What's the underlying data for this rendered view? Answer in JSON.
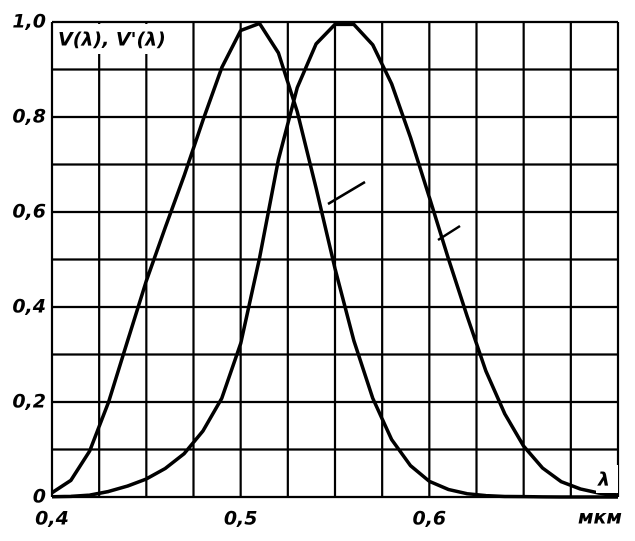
{
  "chart_data": {
    "type": "line",
    "y_label": "V(λ), V'(λ)",
    "x_label": "λ",
    "x_unit": "мкм",
    "x": [
      0.4,
      0.41,
      0.42,
      0.43,
      0.44,
      0.45,
      0.46,
      0.47,
      0.48,
      0.49,
      0.5,
      0.51,
      0.52,
      0.53,
      0.54,
      0.55,
      0.56,
      0.57,
      0.58,
      0.59,
      0.6,
      0.61,
      0.62,
      0.63,
      0.64,
      0.65,
      0.66,
      0.67,
      0.68,
      0.69,
      0.7
    ],
    "series": [
      {
        "color": "#000000",
        "values": [
          0.009,
          0.035,
          0.097,
          0.2,
          0.328,
          0.455,
          0.567,
          0.676,
          0.793,
          0.904,
          0.982,
          0.997,
          0.935,
          0.811,
          0.65,
          0.481,
          0.329,
          0.208,
          0.121,
          0.066,
          0.033,
          0.016,
          0.007,
          0.003,
          0.001,
          0.0007,
          0.0003,
          0.0001,
          0,
          0,
          0
        ]
      },
      {
        "color": "#000000",
        "values": [
          0.0004,
          0.0012,
          0.004,
          0.0116,
          0.023,
          0.038,
          0.06,
          0.091,
          0.139,
          0.208,
          0.323,
          0.503,
          0.71,
          0.862,
          0.954,
          0.995,
          0.995,
          0.952,
          0.87,
          0.757,
          0.631,
          0.503,
          0.381,
          0.265,
          0.175,
          0.107,
          0.061,
          0.032,
          0.017,
          0.0082,
          0.0041
        ]
      }
    ],
    "xlim": [
      0.4,
      0.7
    ],
    "ylim": [
      0,
      1.0
    ],
    "xticks": [
      {
        "value": 0.4,
        "label": "0,4"
      },
      {
        "value": 0.425,
        "label": null
      },
      {
        "value": 0.45,
        "label": null
      },
      {
        "value": 0.475,
        "label": null
      },
      {
        "value": 0.5,
        "label": "0,5"
      },
      {
        "value": 0.525,
        "label": null
      },
      {
        "value": 0.55,
        "label": null
      },
      {
        "value": 0.575,
        "label": null
      },
      {
        "value": 0.6,
        "label": "0,6"
      },
      {
        "value": 0.625,
        "label": null
      },
      {
        "value": 0.65,
        "label": null
      },
      {
        "value": 0.675,
        "label": null
      },
      {
        "value": 0.7,
        "label": null
      }
    ],
    "yticks": [
      0,
      {
        "value": 0.1,
        "label": null
      },
      {
        "value": 0.2,
        "label": "0,2"
      },
      {
        "value": 0.3,
        "label": null
      },
      {
        "value": 0.4,
        "label": "0,4"
      },
      {
        "value": 0.5,
        "label": null
      },
      {
        "value": 0.6,
        "label": "0,6"
      },
      {
        "value": 0.7,
        "label": null
      },
      {
        "value": 0.8,
        "label": "0,8"
      },
      {
        "value": 0.9,
        "label": null
      },
      {
        "value": 1.0,
        "label": "1,0"
      }
    ],
    "grid": true
  }
}
